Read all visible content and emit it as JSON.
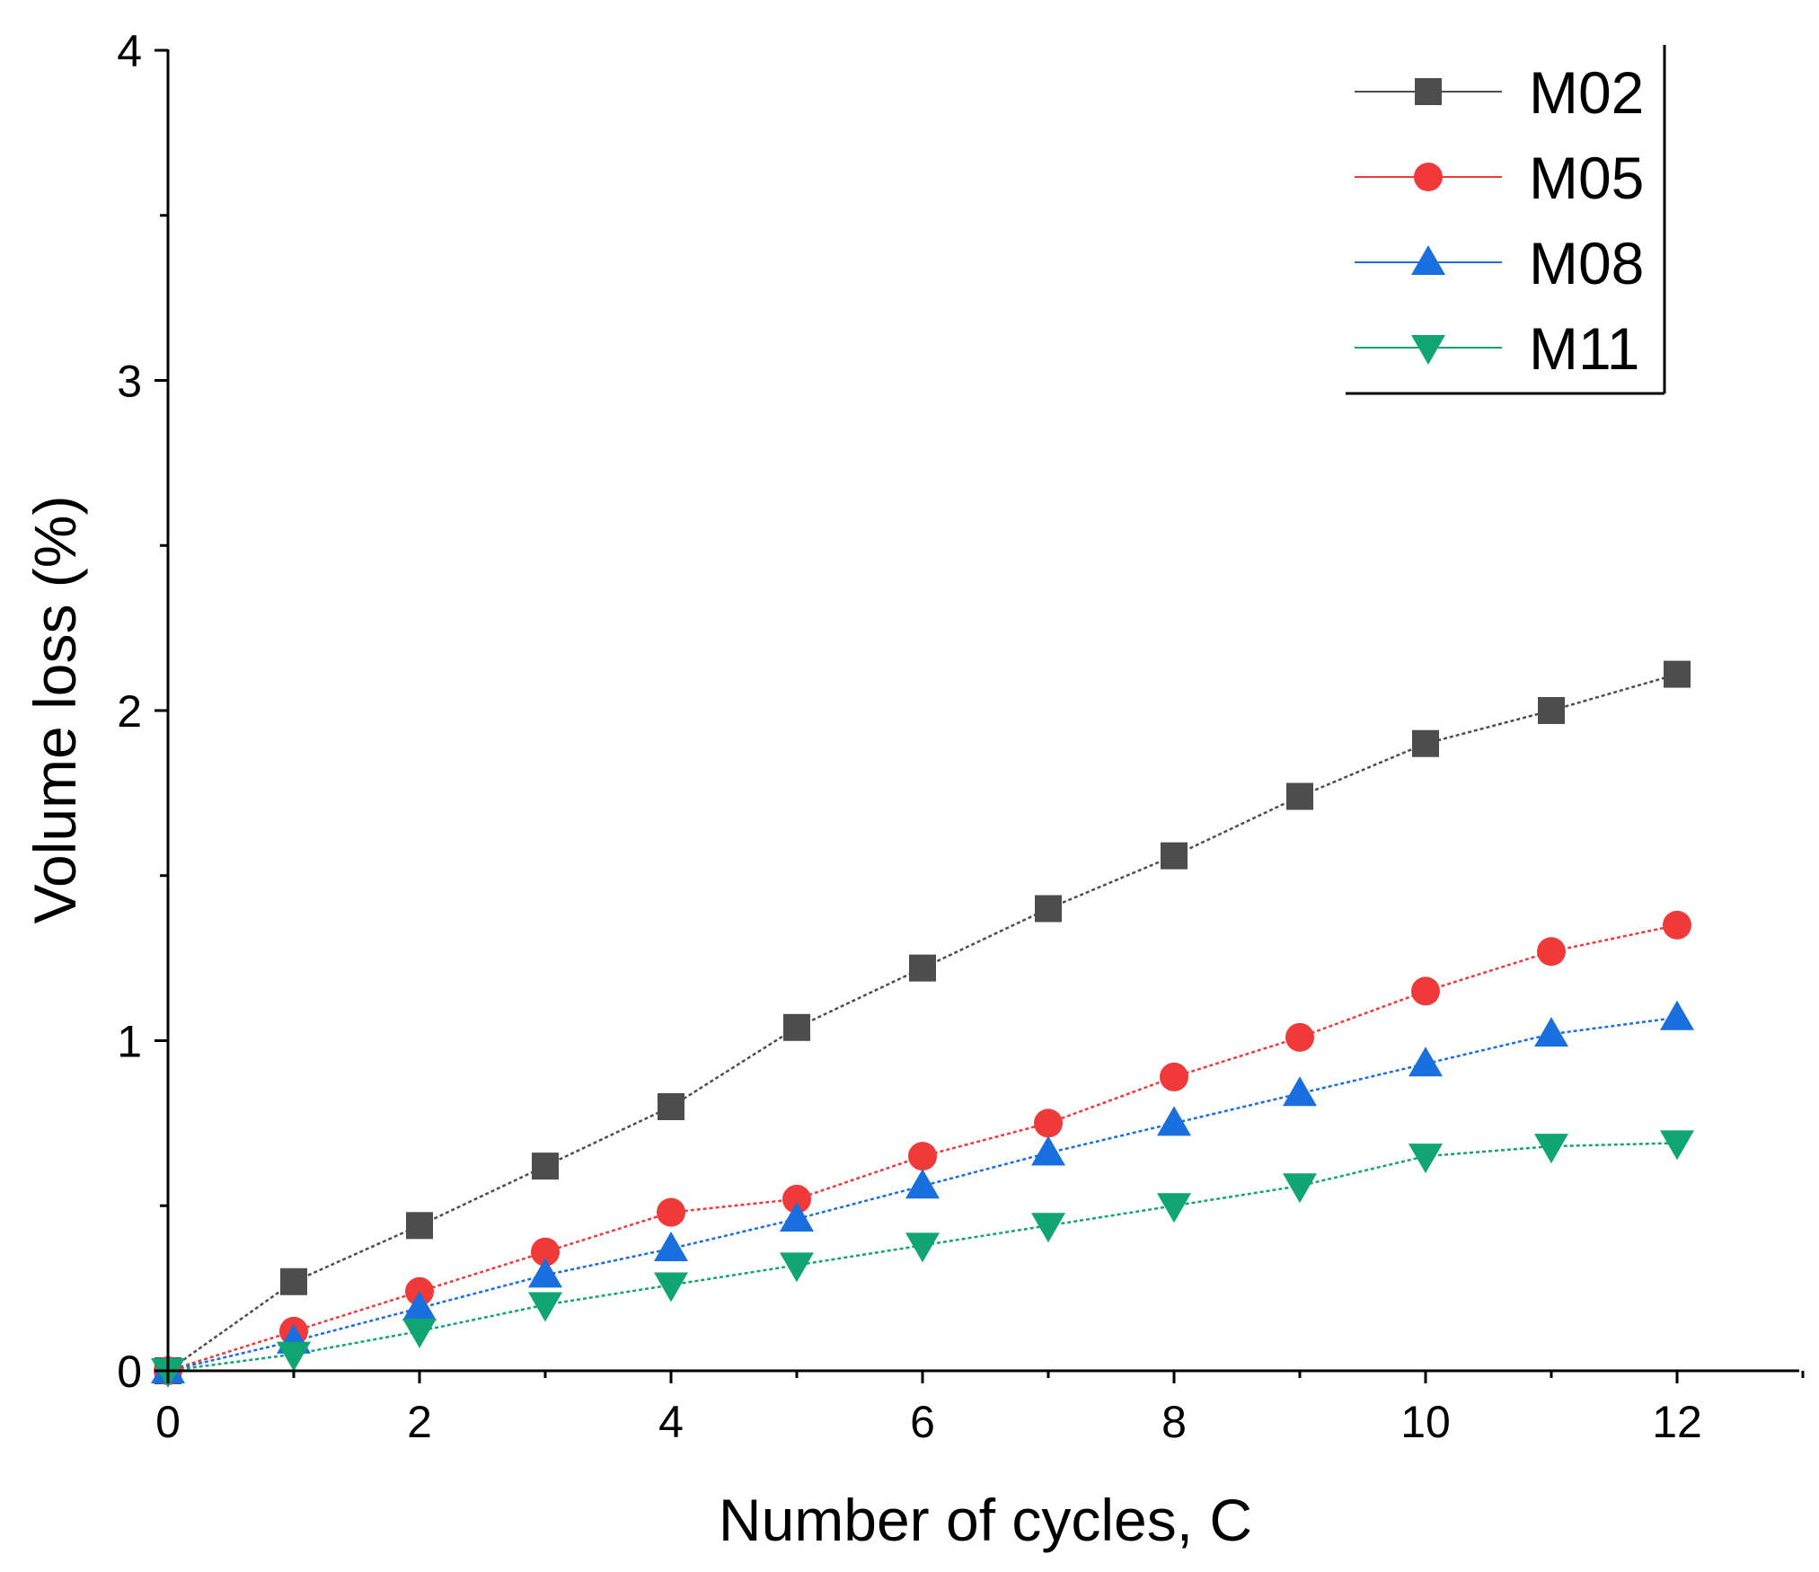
{
  "chart_data": {
    "type": "line",
    "title": "",
    "xlabel": "Number of cycles, C",
    "ylabel": "Volume loss (%)",
    "xlim": [
      0,
      13
    ],
    "ylim": [
      0,
      4
    ],
    "xticks": [
      0,
      2,
      4,
      6,
      8,
      10,
      12
    ],
    "yticks": [
      0,
      1,
      2,
      3,
      4
    ],
    "grid": false,
    "legend_position": "top-right",
    "x": [
      0,
      1,
      2,
      3,
      4,
      5,
      6,
      7,
      8,
      9,
      10,
      11,
      12
    ],
    "series": [
      {
        "name": "M02",
        "marker": "square",
        "color": "#4d4d4d",
        "line_style": "dotted",
        "values": [
          0,
          0.27,
          0.44,
          0.62,
          0.8,
          1.04,
          1.22,
          1.4,
          1.56,
          1.74,
          1.9,
          2.0,
          2.11
        ]
      },
      {
        "name": "M05",
        "marker": "circle",
        "color": "#f03a3a",
        "line_style": "dotted",
        "values": [
          0,
          0.12,
          0.24,
          0.36,
          0.48,
          0.52,
          0.65,
          0.75,
          0.89,
          1.01,
          1.15,
          1.27,
          1.35
        ]
      },
      {
        "name": "M08",
        "marker": "triangle-up",
        "color": "#1a6fe0",
        "line_style": "dotted",
        "values": [
          0,
          0.09,
          0.19,
          0.29,
          0.37,
          0.46,
          0.56,
          0.66,
          0.75,
          0.84,
          0.93,
          1.02,
          1.07
        ]
      },
      {
        "name": "M11",
        "marker": "triangle-down",
        "color": "#12a574",
        "line_style": "dotted",
        "values": [
          0,
          0.05,
          0.12,
          0.2,
          0.26,
          0.32,
          0.38,
          0.44,
          0.5,
          0.56,
          0.65,
          0.68,
          0.69
        ]
      }
    ]
  }
}
